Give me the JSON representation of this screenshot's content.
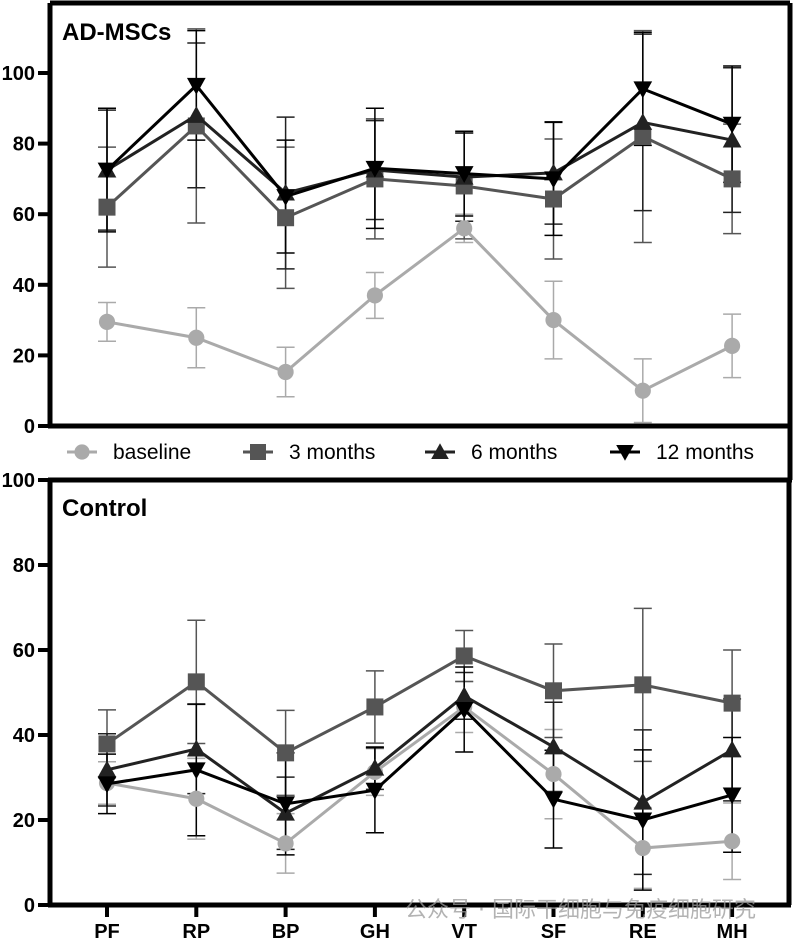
{
  "chart_data": [
    {
      "type": "line",
      "title": "AD-MSCs",
      "xlabel": "",
      "ylabel": "",
      "ylim": [
        0,
        115
      ],
      "yticks": [
        0,
        20,
        40,
        60,
        80,
        100
      ],
      "grid": false,
      "categories": [
        "PF",
        "RP",
        "BP",
        "GH",
        "VT",
        "SF",
        "RE",
        "MH"
      ],
      "series": [
        {
          "name": "baseline",
          "color": "#aaaaaa",
          "marker": "circle",
          "values": [
            29.5,
            25,
            15.3,
            37,
            56,
            30,
            10,
            22.7
          ],
          "error": [
            5.5,
            8.5,
            7,
            6.5,
            4,
            11,
            9,
            9
          ]
        },
        {
          "name": "3 months",
          "color": "#555555",
          "marker": "square",
          "values": [
            62,
            85,
            59,
            70,
            68,
            64.3,
            82,
            70
          ],
          "error": [
            17,
            27.5,
            20,
            17,
            15,
            17,
            30,
            15.5
          ]
        },
        {
          "name": "6 months",
          "color": "#222222",
          "marker": "triangle-up",
          "values": [
            72.5,
            88,
            66,
            72.5,
            70.5,
            71.7,
            86,
            81
          ],
          "error": [
            17,
            20.5,
            21.5,
            14,
            12.5,
            14.5,
            25,
            20.5
          ]
        },
        {
          "name": "12 months",
          "color": "#000000",
          "marker": "triangle-down",
          "values": [
            72.5,
            96.5,
            65,
            73,
            71.5,
            70,
            95.5,
            85.5
          ],
          "error": [
            17.5,
            15.5,
            16,
            17,
            12,
            16,
            16,
            16.5
          ]
        }
      ]
    },
    {
      "type": "line",
      "title": "Control",
      "xlabel": "",
      "ylabel": "",
      "ylim": [
        0,
        100
      ],
      "yticks": [
        0,
        20,
        40,
        60,
        80,
        100
      ],
      "grid": false,
      "categories": [
        "PF",
        "RP",
        "BP",
        "GH",
        "VT",
        "SF",
        "RE",
        "MH"
      ],
      "series": [
        {
          "name": "baseline",
          "color": "#aaaaaa",
          "marker": "circle",
          "values": [
            28.7,
            25,
            14.5,
            31.3,
            46.6,
            30.8,
            13.4,
            15
          ],
          "error": [
            5,
            9.5,
            7,
            5.5,
            6,
            10.5,
            9.5,
            9
          ]
        },
        {
          "name": "3 months",
          "color": "#555555",
          "marker": "square",
          "values": [
            37.9,
            52.5,
            35.8,
            46.6,
            58.6,
            50.4,
            51.8,
            47.5
          ],
          "error": [
            8,
            14.5,
            10,
            8.5,
            6,
            11,
            18,
            12.5
          ]
        },
        {
          "name": "6 months",
          "color": "#222222",
          "marker": "triangle-up",
          "values": [
            31.8,
            36.7,
            21.6,
            32.2,
            49.2,
            37.2,
            24.2,
            36.5
          ],
          "error": [
            8.5,
            10.5,
            8.5,
            5,
            5.5,
            10.5,
            17,
            12
          ]
        },
        {
          "name": "12 months",
          "color": "#000000",
          "marker": "triangle-down",
          "values": [
            28.5,
            31.8,
            23.8,
            27,
            46,
            24.9,
            20,
            25.9
          ],
          "error": [
            7,
            15.5,
            12,
            10,
            10,
            11.5,
            16.5,
            13.5
          ]
        }
      ]
    }
  ],
  "legend": {
    "placement": "between-panels",
    "items": [
      {
        "label": "baseline",
        "marker": "circle",
        "color": "#aaaaaa"
      },
      {
        "label": "3 months",
        "marker": "square",
        "color": "#555555"
      },
      {
        "label": "6 months",
        "marker": "triangle-up",
        "color": "#222222"
      },
      {
        "label": "12 months",
        "marker": "triangle-down",
        "color": "#000000"
      }
    ]
  },
  "watermark": "公众号 · 国际干细胞与免疫细胞研究"
}
